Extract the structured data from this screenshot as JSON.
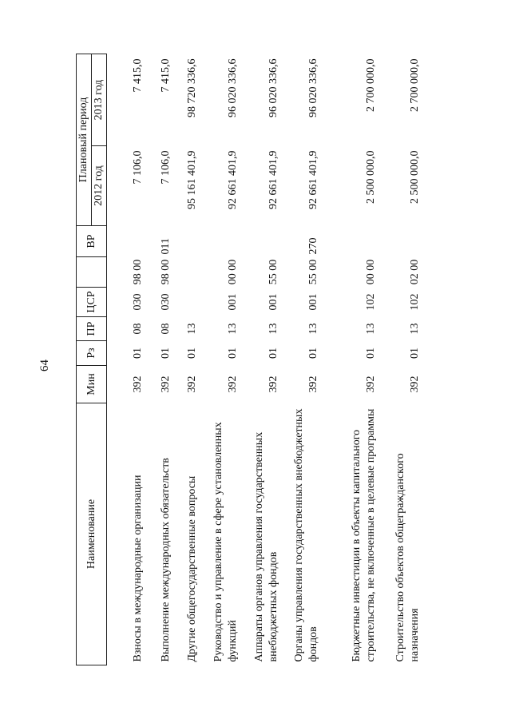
{
  "page_number": "64",
  "header": {
    "name": "Наименование",
    "min": "Мин",
    "rz": "Рз",
    "pr": "ПР",
    "csr": "ЦСР",
    "vr": "ВР",
    "plan_period": "Плановый период",
    "y2012": "2012 год",
    "y2013": "2013 год"
  },
  "rows": [
    {
      "name": "Взносы в международные организации",
      "min": "392",
      "rz": "01",
      "pr": "08",
      "csr1": "030",
      "csr2": "98 00",
      "vr": "",
      "v2012": "7 106,0",
      "v2013": "7 415,0"
    },
    {
      "name": "Выполнение международных обязательств",
      "min": "392",
      "rz": "01",
      "pr": "08",
      "csr1": "030",
      "csr2": "98 00",
      "vr": "011",
      "v2012": "7 106,0",
      "v2013": "7 415,0"
    },
    {
      "name": "Другие общегосударственные вопросы",
      "min": "392",
      "rz": "01",
      "pr": "13",
      "csr1": "",
      "csr2": "",
      "vr": "",
      "v2012": "95 161 401,9",
      "v2013": "98 720 336,6"
    },
    {
      "name": "Руководство и управление в сфере установленных функций",
      "min": "392",
      "rz": "01",
      "pr": "13",
      "csr1": "001",
      "csr2": "00 00",
      "vr": "",
      "v2012": "92 661 401,9",
      "v2013": "96 020 336,6"
    },
    {
      "name": "Аппараты органов управления государственных внебюджетных фондов",
      "min": "392",
      "rz": "01",
      "pr": "13",
      "csr1": "001",
      "csr2": "55 00",
      "vr": "",
      "v2012": "92 661 401,9",
      "v2013": "96 020 336,6"
    },
    {
      "name": "Органы управления государственных внебюджетных фондов",
      "min": "392",
      "rz": "01",
      "pr": "13",
      "csr1": "001",
      "csr2": "55 00",
      "vr": "270",
      "v2012": "92 661 401,9",
      "v2013": "96 020 336,6"
    },
    {
      "name": "Бюджетные инвестиции в объекты капитального строительства, не включенные в целевые программы",
      "min": "392",
      "rz": "01",
      "pr": "13",
      "csr1": "102",
      "csr2": "00 00",
      "vr": "",
      "v2012": "2 500 000,0",
      "v2013": "2 700 000,0"
    },
    {
      "name": "Строительство объектов общегражданского назначения",
      "min": "392",
      "rz": "01",
      "pr": "13",
      "csr1": "102",
      "csr2": "02 00",
      "vr": "",
      "v2012": "2 500 000,0",
      "v2013": "2 700 000,0"
    }
  ]
}
